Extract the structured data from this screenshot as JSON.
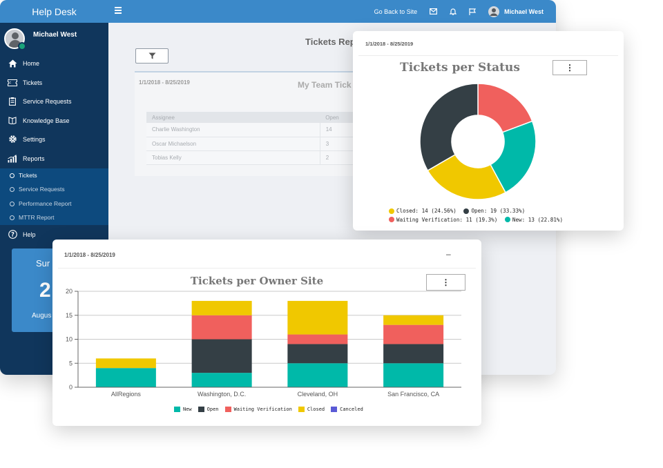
{
  "app": {
    "title": "Help Desk"
  },
  "topbar": {
    "back_label": "Go Back to Site",
    "user_name": "Michael West"
  },
  "sidebar": {
    "user_name": "Michael West",
    "items": [
      {
        "label": "Home",
        "icon": "home-icon"
      },
      {
        "label": "Tickets",
        "icon": "ticket-icon"
      },
      {
        "label": "Service Requests",
        "icon": "clipboard-icon"
      },
      {
        "label": "Knowledge Base",
        "icon": "book-icon"
      },
      {
        "label": "Settings",
        "icon": "gear-icon"
      },
      {
        "label": "Reports",
        "icon": "bar-chart-icon"
      }
    ],
    "report_items": [
      {
        "label": "Tickets",
        "active": true
      },
      {
        "label": "Service Requests",
        "active": false
      },
      {
        "label": "Performance Report",
        "active": false
      },
      {
        "label": "MTTR Report",
        "active": false
      }
    ],
    "help_label": "Help",
    "summary": {
      "line1": "Sur",
      "line2": "2",
      "line3": "Augus"
    }
  },
  "main": {
    "title": "Tickets Rep",
    "team_panel": {
      "date_range": "1/1/2018 - 8/25/2019",
      "title": "My Team Tick",
      "headers": [
        "Assignee",
        "Open"
      ],
      "rows": [
        {
          "assignee": "Charlie Washington",
          "open": "14"
        },
        {
          "assignee": "Oscar Michaelson",
          "open": "3"
        },
        {
          "assignee": "Tobias Kelly",
          "open": "2"
        }
      ]
    }
  },
  "status_card": {
    "date_range": "1/1/2018 - 8/25/2019",
    "title": "Tickets per Status",
    "menu_label": "⋮",
    "legend": [
      {
        "label": "Closed: 14 (24.56%)",
        "color": "#f0c800"
      },
      {
        "label": "Open: 19 (33.33%)",
        "color": "#343f45"
      },
      {
        "label": "Waiting Verification: 11 (19.3%)",
        "color": "#f0605d"
      },
      {
        "label": "New: 13 (22.81%)",
        "color": "#00b9a9"
      }
    ]
  },
  "site_card": {
    "date_range": "1/1/2018 - 8/25/2019",
    "minimize_label": "–",
    "title": "Tickets per Owner Site",
    "menu_label": "⋮"
  },
  "chart_data": [
    {
      "type": "pie",
      "title": "Tickets per Status",
      "donut": true,
      "slices": [
        {
          "name": "Waiting Verification",
          "value": 11,
          "percent": 19.3,
          "color": "#f0605d"
        },
        {
          "name": "New",
          "value": 13,
          "percent": 22.81,
          "color": "#00b9a9"
        },
        {
          "name": "Closed",
          "value": 14,
          "percent": 24.56,
          "color": "#f0c800"
        },
        {
          "name": "Open",
          "value": 19,
          "percent": 33.33,
          "color": "#343f45"
        }
      ],
      "legend_position": "bottom"
    },
    {
      "type": "bar",
      "stacked": true,
      "title": "Tickets per Owner Site",
      "categories": [
        "AllRegions",
        "Washington, D.C.",
        "Cleveland, OH",
        "San Francisco, CA"
      ],
      "series": [
        {
          "name": "New",
          "color": "#00b9a9",
          "values": [
            4,
            3,
            5,
            5
          ]
        },
        {
          "name": "Open",
          "color": "#343f45",
          "values": [
            0,
            7,
            4,
            4
          ]
        },
        {
          "name": "Waiting Verification",
          "color": "#f0605d",
          "values": [
            0,
            5,
            2,
            4
          ]
        },
        {
          "name": "Closed",
          "color": "#f0c800",
          "values": [
            2,
            3,
            7,
            2
          ]
        },
        {
          "name": "Canceled",
          "color": "#5a5ad6",
          "values": [
            0,
            0,
            0,
            0
          ]
        }
      ],
      "ylim": [
        0,
        20
      ],
      "yticks": [
        0,
        5,
        10,
        15,
        20
      ],
      "grid": true,
      "legend_position": "bottom"
    }
  ]
}
